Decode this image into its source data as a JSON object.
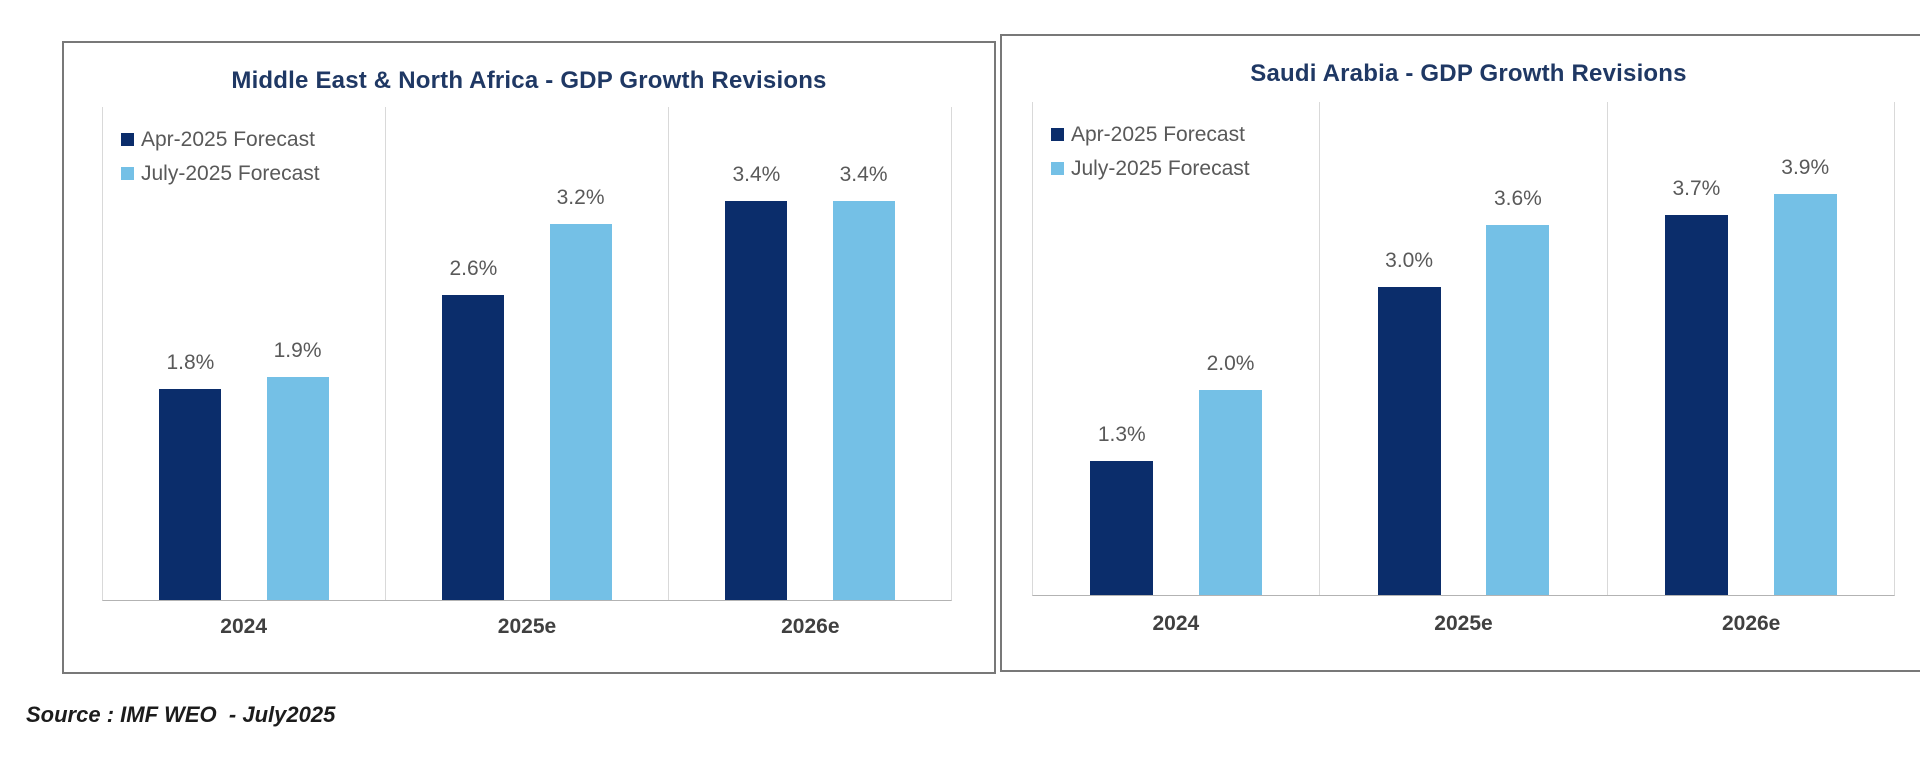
{
  "source_note": "Source : IMF WEO  - July2025",
  "colors": {
    "series_apr": "#0b2d6b",
    "series_july": "#74c0e6",
    "title_text": "#1f3864",
    "value_label_text": "#595959",
    "axis_label_text": "#404040",
    "gridline": "#d9d9d9",
    "axis_line": "#b3b3b3",
    "panel_border": "#787878"
  },
  "chart_data": [
    {
      "type": "bar",
      "title": "Middle East & North Africa - GDP Growth Revisions",
      "categories": [
        "2024",
        "2025e",
        "2026e"
      ],
      "series": [
        {
          "name": "Apr-2025 Forecast",
          "color": "#0b2d6b",
          "values": [
            1.8,
            2.6,
            3.4
          ]
        },
        {
          "name": "July-2025 Forecast",
          "color": "#74c0e6",
          "values": [
            1.9,
            3.2,
            3.4
          ]
        }
      ],
      "value_labels": [
        [
          "1.8%",
          "2.6%",
          "3.4%"
        ],
        [
          "1.9%",
          "3.2%",
          "3.4%"
        ]
      ],
      "ylim": [
        0,
        4.2
      ],
      "grid": "vertical-category-separators",
      "legend_position": "top-left-inside"
    },
    {
      "type": "bar",
      "title": "Saudi Arabia - GDP Growth Revisions",
      "categories": [
        "2024",
        "2025e",
        "2026e"
      ],
      "series": [
        {
          "name": "Apr-2025 Forecast",
          "color": "#0b2d6b",
          "values": [
            1.3,
            3.0,
            3.7
          ]
        },
        {
          "name": "July-2025 Forecast",
          "color": "#74c0e6",
          "values": [
            2.0,
            3.6,
            3.9
          ]
        }
      ],
      "value_labels": [
        [
          "1.3%",
          "3.0%",
          "3.7%"
        ],
        [
          "2.0%",
          "3.6%",
          "3.9%"
        ]
      ],
      "ylim": [
        0,
        4.8
      ],
      "grid": "vertical-category-separators",
      "legend_position": "top-left-inside"
    }
  ]
}
